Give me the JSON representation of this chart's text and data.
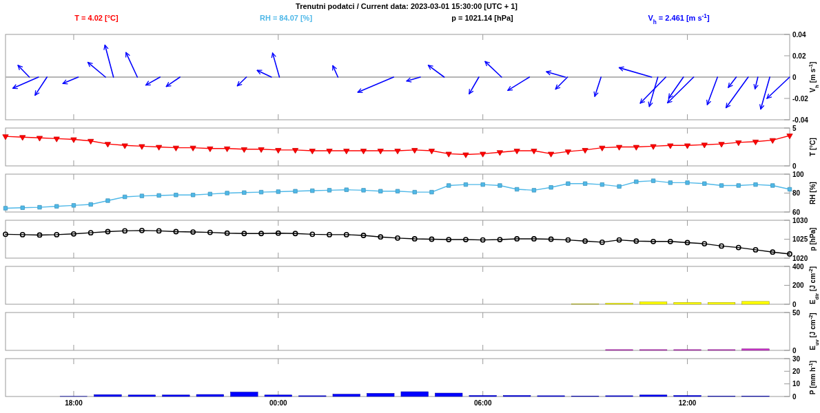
{
  "chart_data": [
    {
      "type": "line",
      "title": "Trenutni  podatci / Current data: 2023-03-01 15:30:00 [UTC + 1]",
      "annotations": [
        "T = 4.02 [°C]",
        "RH = 84.07 [%]",
        "p = 1021.14 [hPa]",
        "V$_{h}$ = 2.461 [m s$^{-1}$]"
      ],
      "ylabel": "V$_{h}$ [m s$^{-1}$]",
      "xlim": [
        "2023-02-28T16:00",
        "2023-03-01T15:00"
      ],
      "xticks": [
        {
          "value": "2023-02-28T18:00",
          "label": null
        },
        {
          "value": "2023-03-01T00:00",
          "label": null
        },
        {
          "value": "2023-03-01T06:00",
          "label": null
        },
        {
          "value": "2023-03-01T12:00",
          "label": null
        }
      ],
      "ylim": [
        -0.04,
        0.04
      ],
      "yticks": [
        -0.04,
        -0.02,
        0,
        0.02,
        0.04
      ],
      "tick_labels": "y",
      "ref_lines": [
        {
          "axis": "y",
          "value": 0,
          "color": "#b4b4b4"
        }
      ],
      "series": [
        {
          "x": [
            "2023-02-28T16:42",
            "2023-02-28T16:22"
          ],
          "values": [
            0,
            0.011
          ],
          "color": "#0000ff"
        },
        {
          "x": [
            "2023-02-28T16:58",
            "2023-02-28T16:13"
          ],
          "values": [
            0,
            -0.0105
          ],
          "color": "#0000ff"
        },
        {
          "x": [
            "2023-02-28T17:13",
            "2023-02-28T16:52"
          ],
          "values": [
            0,
            -0.017
          ],
          "color": "#0000ff"
        },
        {
          "x": [
            "2023-02-28T18:08",
            "2023-02-28T17:41"
          ],
          "values": [
            0,
            -0.006
          ],
          "color": "#0000ff"
        },
        {
          "x": [
            "2023-02-28T18:56",
            "2023-02-28T18:25"
          ],
          "values": [
            0,
            0.0138
          ],
          "color": "#0000ff"
        },
        {
          "x": [
            "2023-02-28T19:10",
            "2023-02-28T18:55"
          ],
          "values": [
            0,
            0.03
          ],
          "color": "#0000ff"
        },
        {
          "x": [
            "2023-02-28T19:52",
            "2023-02-28T19:32"
          ],
          "values": [
            0,
            0.023
          ],
          "color": "#0000ff"
        },
        {
          "x": [
            "2023-02-28T20:32",
            "2023-02-28T20:07"
          ],
          "values": [
            0,
            -0.0075
          ],
          "color": "#0000ff"
        },
        {
          "x": [
            "2023-02-28T21:07",
            "2023-02-28T20:43"
          ],
          "values": [
            0,
            -0.0088
          ],
          "color": "#0000ff"
        },
        {
          "x": [
            "2023-02-28T23:04",
            "2023-02-28T22:48"
          ],
          "values": [
            0,
            -0.0082
          ],
          "color": "#0000ff"
        },
        {
          "x": [
            "2023-02-28T23:48",
            "2023-02-28T23:23"
          ],
          "values": [
            0,
            0.0063
          ],
          "color": "#0000ff"
        },
        {
          "x": [
            "2023-03-01T00:02",
            "2023-02-28T23:50"
          ],
          "values": [
            0,
            0.0225
          ],
          "color": "#0000ff"
        },
        {
          "x": [
            "2023-03-01T01:45",
            "2023-03-01T01:36"
          ],
          "values": [
            0,
            0.0107
          ],
          "color": "#0000ff"
        },
        {
          "x": [
            "2023-03-01T03:23",
            "2023-03-01T02:20"
          ],
          "values": [
            0,
            -0.0142
          ],
          "color": "#0000ff"
        },
        {
          "x": [
            "2023-03-01T04:10",
            "2023-03-01T03:46"
          ],
          "values": [
            0,
            -0.0037
          ],
          "color": "#0000ff"
        },
        {
          "x": [
            "2023-03-01T04:52",
            "2023-03-01T04:24"
          ],
          "values": [
            0,
            0.011
          ],
          "color": "#0000ff"
        },
        {
          "x": [
            "2023-03-01T05:53",
            "2023-03-01T05:36"
          ],
          "values": [
            0,
            -0.0157
          ],
          "color": "#0000ff"
        },
        {
          "x": [
            "2023-03-01T06:33",
            "2023-03-01T06:04"
          ],
          "values": [
            0,
            0.0146
          ],
          "color": "#0000ff"
        },
        {
          "x": [
            "2023-03-01T07:22",
            "2023-03-01T06:44"
          ],
          "values": [
            0,
            -0.0125
          ],
          "color": "#0000ff"
        },
        {
          "x": [
            "2023-03-01T08:25",
            "2023-03-01T07:52"
          ],
          "values": [
            0,
            0.005
          ],
          "color": "#0000ff"
        },
        {
          "x": [
            "2023-03-01T08:29",
            "2023-03-01T08:08"
          ],
          "values": [
            0,
            -0.0113
          ],
          "color": "#0000ff"
        },
        {
          "x": [
            "2023-03-01T09:28",
            "2023-03-01T09:17"
          ],
          "values": [
            0,
            -0.018
          ],
          "color": "#0000ff"
        },
        {
          "x": [
            "2023-03-01T10:57",
            "2023-03-01T10:00"
          ],
          "values": [
            0,
            0.0088
          ],
          "color": "#0000ff"
        },
        {
          "x": [
            "2023-03-01T11:08",
            "2023-03-01T10:53"
          ],
          "values": [
            0,
            -0.0275
          ],
          "color": "#0000ff"
        },
        {
          "x": [
            "2023-03-01T11:22",
            "2023-03-01T10:37"
          ],
          "values": [
            0,
            -0.0245
          ],
          "color": "#0000ff"
        },
        {
          "x": [
            "2023-03-01T11:53",
            "2023-03-01T11:27"
          ],
          "values": [
            0,
            -0.0198
          ],
          "color": "#0000ff"
        },
        {
          "x": [
            "2023-03-01T12:11",
            "2023-03-01T11:25"
          ],
          "values": [
            0,
            -0.0242
          ],
          "color": "#0000ff"
        },
        {
          "x": [
            "2023-03-01T12:53",
            "2023-03-01T12:35"
          ],
          "values": [
            0,
            -0.0258
          ],
          "color": "#0000ff"
        },
        {
          "x": [
            "2023-03-01T13:26",
            "2023-03-01T13:12"
          ],
          "values": [
            0,
            -0.0097
          ],
          "color": "#0000ff"
        },
        {
          "x": [
            "2023-03-01T13:47",
            "2023-03-01T13:08"
          ],
          "values": [
            0,
            -0.0287
          ],
          "color": "#0000ff"
        },
        {
          "x": [
            "2023-03-01T14:04",
            "2023-03-01T13:59"
          ],
          "values": [
            0,
            -0.011
          ],
          "color": "#0000ff"
        },
        {
          "x": [
            "2023-03-01T14:25",
            "2023-03-01T14:09"
          ],
          "values": [
            0,
            -0.03
          ],
          "color": "#0000ff"
        },
        {
          "x": [
            "2023-03-01T15:00",
            "2023-03-01T14:20"
          ],
          "values": [
            0,
            -0.02
          ],
          "color": "#0000ff"
        }
      ]
    },
    {
      "type": "line",
      "ylabel": "T [°C]",
      "marker": "triangle",
      "xlim": [
        "2023-02-28T16:00",
        "2023-03-01T15:00"
      ],
      "xticks": [
        {
          "value": "2023-02-28T18:00",
          "label": null
        },
        {
          "value": "2023-03-01T00:00",
          "label": null
        },
        {
          "value": "2023-03-01T06:00",
          "label": null
        },
        {
          "value": "2023-03-01T12:00",
          "label": null
        }
      ],
      "ylim": [
        0,
        5
      ],
      "yticks": [
        0,
        5
      ],
      "tick_labels": "y",
      "x": [
        "2023-02-28T16:00",
        "2023-02-28T16:30",
        "2023-02-28T17:00",
        "2023-02-28T17:30",
        "2023-02-28T18:00",
        "2023-02-28T18:30",
        "2023-02-28T19:00",
        "2023-02-28T19:30",
        "2023-02-28T20:00",
        "2023-02-28T20:30",
        "2023-02-28T21:00",
        "2023-02-28T21:30",
        "2023-02-28T22:00",
        "2023-02-28T22:30",
        "2023-02-28T23:00",
        "2023-02-28T23:30",
        "2023-03-01T00:00",
        "2023-03-01T00:30",
        "2023-03-01T01:00",
        "2023-03-01T01:30",
        "2023-03-01T02:00",
        "2023-03-01T02:30",
        "2023-03-01T03:00",
        "2023-03-01T03:30",
        "2023-03-01T04:00",
        "2023-03-01T04:30",
        "2023-03-01T05:00",
        "2023-03-01T05:30",
        "2023-03-01T06:00",
        "2023-03-01T06:30",
        "2023-03-01T07:00",
        "2023-03-01T07:30",
        "2023-03-01T08:00",
        "2023-03-01T08:30",
        "2023-03-01T09:00",
        "2023-03-01T09:30",
        "2023-03-01T10:00",
        "2023-03-01T10:30",
        "2023-03-01T11:00",
        "2023-03-01T11:30",
        "2023-03-01T12:00",
        "2023-03-01T12:30",
        "2023-03-01T13:00",
        "2023-03-01T13:30",
        "2023-03-01T14:00",
        "2023-03-01T14:30",
        "2023-03-01T15:00"
      ],
      "series": [
        {
          "color": "#ff0000",
          "values": [
            3.9,
            3.8,
            3.7,
            3.6,
            3.5,
            3.3,
            2.9,
            2.7,
            2.6,
            2.5,
            2.4,
            2.4,
            2.3,
            2.3,
            2.2,
            2.2,
            2.1,
            2.1,
            2.0,
            2.0,
            2.0,
            2.0,
            2.0,
            2.0,
            2.1,
            2.0,
            1.6,
            1.5,
            1.6,
            1.8,
            2.0,
            2.0,
            1.6,
            1.9,
            2.1,
            2.4,
            2.5,
            2.5,
            2.6,
            2.7,
            2.7,
            2.8,
            2.9,
            3.1,
            3.2,
            3.4,
            4.0
          ]
        }
      ]
    },
    {
      "type": "line",
      "ylabel": "RH [%]",
      "marker": "square",
      "xlim": [
        "2023-02-28T16:00",
        "2023-03-01T15:00"
      ],
      "xticks": [
        {
          "value": "2023-02-28T18:00",
          "label": null
        },
        {
          "value": "2023-03-01T00:00",
          "label": null
        },
        {
          "value": "2023-03-01T06:00",
          "label": null
        },
        {
          "value": "2023-03-01T12:00",
          "label": null
        }
      ],
      "ylim": [
        60,
        100
      ],
      "yticks": [
        60,
        80,
        100
      ],
      "tick_labels": "y",
      "x": [
        "2023-02-28T16:00",
        "2023-02-28T16:30",
        "2023-02-28T17:00",
        "2023-02-28T17:30",
        "2023-02-28T18:00",
        "2023-02-28T18:30",
        "2023-02-28T19:00",
        "2023-02-28T19:30",
        "2023-02-28T20:00",
        "2023-02-28T20:30",
        "2023-02-28T21:00",
        "2023-02-28T21:30",
        "2023-02-28T22:00",
        "2023-02-28T22:30",
        "2023-02-28T23:00",
        "2023-02-28T23:30",
        "2023-03-01T00:00",
        "2023-03-01T00:30",
        "2023-03-01T01:00",
        "2023-03-01T01:30",
        "2023-03-01T02:00",
        "2023-03-01T02:30",
        "2023-03-01T03:00",
        "2023-03-01T03:30",
        "2023-03-01T04:00",
        "2023-03-01T04:30",
        "2023-03-01T05:00",
        "2023-03-01T05:30",
        "2023-03-01T06:00",
        "2023-03-01T06:30",
        "2023-03-01T07:00",
        "2023-03-01T07:30",
        "2023-03-01T08:00",
        "2023-03-01T08:30",
        "2023-03-01T09:00",
        "2023-03-01T09:30",
        "2023-03-01T10:00",
        "2023-03-01T10:30",
        "2023-03-01T11:00",
        "2023-03-01T11:30",
        "2023-03-01T12:00",
        "2023-03-01T12:30",
        "2023-03-01T13:00",
        "2023-03-01T13:30",
        "2023-03-01T14:00",
        "2023-03-01T14:30",
        "2023-03-01T15:00"
      ],
      "series": [
        {
          "color": "#4fb8e8",
          "values": [
            64,
            64.5,
            65,
            66,
            67,
            68,
            72,
            76,
            77,
            77.5,
            78,
            78,
            79,
            80,
            80.5,
            81,
            81.5,
            82,
            82.5,
            83,
            83.5,
            83,
            82,
            82,
            81,
            81,
            88,
            89,
            89,
            88,
            84,
            83,
            86,
            90,
            90,
            89,
            87,
            92,
            93,
            91,
            91,
            90,
            88,
            88,
            89,
            88,
            84
          ]
        }
      ]
    },
    {
      "type": "line",
      "ylabel": "p [hPa]",
      "marker": "circle",
      "xlim": [
        "2023-02-28T16:00",
        "2023-03-01T15:00"
      ],
      "xticks": [
        {
          "value": "2023-02-28T18:00",
          "label": null
        },
        {
          "value": "2023-03-01T00:00",
          "label": null
        },
        {
          "value": "2023-03-01T06:00",
          "label": null
        },
        {
          "value": "2023-03-01T12:00",
          "label": null
        }
      ],
      "ylim": [
        1020,
        1030
      ],
      "yticks": [
        1020,
        1025,
        1030
      ],
      "tick_labels": "y",
      "x": [
        "2023-02-28T16:00",
        "2023-02-28T16:30",
        "2023-02-28T17:00",
        "2023-02-28T17:30",
        "2023-02-28T18:00",
        "2023-02-28T18:30",
        "2023-02-28T19:00",
        "2023-02-28T19:30",
        "2023-02-28T20:00",
        "2023-02-28T20:30",
        "2023-02-28T21:00",
        "2023-02-28T21:30",
        "2023-02-28T22:00",
        "2023-02-28T22:30",
        "2023-02-28T23:00",
        "2023-02-28T23:30",
        "2023-03-01T00:00",
        "2023-03-01T00:30",
        "2023-03-01T01:00",
        "2023-03-01T01:30",
        "2023-03-01T02:00",
        "2023-03-01T02:30",
        "2023-03-01T03:00",
        "2023-03-01T03:30",
        "2023-03-01T04:00",
        "2023-03-01T04:30",
        "2023-03-01T05:00",
        "2023-03-01T05:30",
        "2023-03-01T06:00",
        "2023-03-01T06:30",
        "2023-03-01T07:00",
        "2023-03-01T07:30",
        "2023-03-01T08:00",
        "2023-03-01T08:30",
        "2023-03-01T09:00",
        "2023-03-01T09:30",
        "2023-03-01T10:00",
        "2023-03-01T10:30",
        "2023-03-01T11:00",
        "2023-03-01T11:30",
        "2023-03-01T12:00",
        "2023-03-01T12:30",
        "2023-03-01T13:00",
        "2023-03-01T13:30",
        "2023-03-01T14:00",
        "2023-03-01T14:30",
        "2023-03-01T15:00"
      ],
      "series": [
        {
          "color": "#000000",
          "values": [
            1026.3,
            1026.2,
            1026.1,
            1026.2,
            1026.4,
            1026.7,
            1027,
            1027.2,
            1027.3,
            1027.2,
            1027,
            1026.9,
            1026.8,
            1026.6,
            1026.5,
            1026.5,
            1026.6,
            1026.5,
            1026.3,
            1026.2,
            1026.2,
            1026,
            1025.6,
            1025.3,
            1025.1,
            1025,
            1024.9,
            1024.9,
            1024.8,
            1024.9,
            1025.1,
            1025.1,
            1025,
            1024.8,
            1024.5,
            1024.2,
            1024.8,
            1024.5,
            1024.4,
            1024.4,
            1024.1,
            1023.8,
            1023.2,
            1022.8,
            1022.2,
            1021.6,
            1021.1
          ]
        }
      ]
    },
    {
      "type": "bar",
      "ylabel": "E$_{dir}$ [J cm$^{-2}$]",
      "xlim": [
        "2023-02-28T16:00",
        "2023-03-01T15:00"
      ],
      "xticks": [
        {
          "value": "2023-02-28T18:00",
          "label": null
        },
        {
          "value": "2023-03-01T00:00",
          "label": null
        },
        {
          "value": "2023-03-01T06:00",
          "label": null
        },
        {
          "value": "2023-03-01T12:00",
          "label": null
        }
      ],
      "ylim": [
        0,
        400
      ],
      "yticks": [
        0,
        200,
        400
      ],
      "tick_labels": "y",
      "x": [
        "2023-02-28T16:00",
        "2023-02-28T17:00",
        "2023-02-28T18:00",
        "2023-02-28T19:00",
        "2023-02-28T20:00",
        "2023-02-28T21:00",
        "2023-02-28T22:00",
        "2023-02-28T23:00",
        "2023-03-01T00:00",
        "2023-03-01T01:00",
        "2023-03-01T02:00",
        "2023-03-01T03:00",
        "2023-03-01T04:00",
        "2023-03-01T05:00",
        "2023-03-01T06:00",
        "2023-03-01T07:00",
        "2023-03-01T08:00",
        "2023-03-01T09:00",
        "2023-03-01T10:00",
        "2023-03-01T11:00",
        "2023-03-01T12:00",
        "2023-03-01T13:00",
        "2023-03-01T14:00"
      ],
      "series": [
        {
          "color": "#ffff00",
          "values": [
            0,
            0,
            0,
            0,
            0,
            0,
            0,
            0,
            0,
            0,
            0,
            0,
            0,
            0,
            0,
            0,
            0,
            2,
            10,
            25,
            20,
            20,
            30
          ]
        }
      ]
    },
    {
      "type": "bar",
      "ylabel": "E$_{uv}$ [J cm$^{-2}$]",
      "xlim": [
        "2023-02-28T16:00",
        "2023-03-01T15:00"
      ],
      "xticks": [
        {
          "value": "2023-02-28T18:00",
          "label": null
        },
        {
          "value": "2023-03-01T00:00",
          "label": null
        },
        {
          "value": "2023-03-01T06:00",
          "label": null
        },
        {
          "value": "2023-03-01T12:00",
          "label": null
        }
      ],
      "ylim": [
        0,
        50
      ],
      "yticks": [
        0,
        50
      ],
      "tick_labels": "y",
      "x": [
        "2023-02-28T16:00",
        "2023-02-28T17:00",
        "2023-02-28T18:00",
        "2023-02-28T19:00",
        "2023-02-28T20:00",
        "2023-02-28T21:00",
        "2023-02-28T22:00",
        "2023-02-28T23:00",
        "2023-03-01T00:00",
        "2023-03-01T01:00",
        "2023-03-01T02:00",
        "2023-03-01T03:00",
        "2023-03-01T04:00",
        "2023-03-01T05:00",
        "2023-03-01T06:00",
        "2023-03-01T07:00",
        "2023-03-01T08:00",
        "2023-03-01T09:00",
        "2023-03-01T10:00",
        "2023-03-01T11:00",
        "2023-03-01T12:00",
        "2023-03-01T13:00",
        "2023-03-01T14:00"
      ],
      "series": [
        {
          "color": "#cc33cc",
          "values": [
            0,
            0,
            0,
            0,
            0,
            0,
            0,
            0,
            0,
            0,
            0,
            0,
            0,
            0,
            0,
            0,
            0,
            0,
            1,
            1,
            1,
            1,
            2
          ]
        }
      ]
    },
    {
      "type": "bar",
      "ylabel": "P [mm h$^{-1}$]",
      "xlim": [
        "2023-02-28T16:00",
        "2023-03-01T15:00"
      ],
      "xticks": [
        {
          "value": "2023-02-28T18:00",
          "label": "18:00"
        },
        {
          "value": "2023-03-01T00:00",
          "label": "00:00"
        },
        {
          "value": "2023-03-01T06:00",
          "label": "06:00"
        },
        {
          "value": "2023-03-01T12:00",
          "label": "12:00"
        }
      ],
      "ylim": [
        0,
        30
      ],
      "yticks": [
        0,
        10,
        20,
        30
      ],
      "x": [
        "2023-02-28T16:00",
        "2023-02-28T17:00",
        "2023-02-28T18:00",
        "2023-02-28T19:00",
        "2023-02-28T20:00",
        "2023-02-28T21:00",
        "2023-02-28T22:00",
        "2023-02-28T23:00",
        "2023-03-01T00:00",
        "2023-03-01T01:00",
        "2023-03-01T02:00",
        "2023-03-01T03:00",
        "2023-03-01T04:00",
        "2023-03-01T05:00",
        "2023-03-01T06:00",
        "2023-03-01T07:00",
        "2023-03-01T08:00",
        "2023-03-01T09:00",
        "2023-03-01T10:00",
        "2023-03-01T11:00",
        "2023-03-01T12:00",
        "2023-03-01T13:00",
        "2023-03-01T14:00"
      ],
      "series": [
        {
          "color": "#0000ff",
          "values": [
            0,
            0,
            0.1,
            1.5,
            1.2,
            1.2,
            1.6,
            3.5,
            1.2,
            0.6,
            1.8,
            2.5,
            3.8,
            2.7,
            0.8,
            0.8,
            0.6,
            0.4,
            0.6,
            1.2,
            0.8,
            0.3,
            0.3
          ]
        }
      ]
    }
  ]
}
